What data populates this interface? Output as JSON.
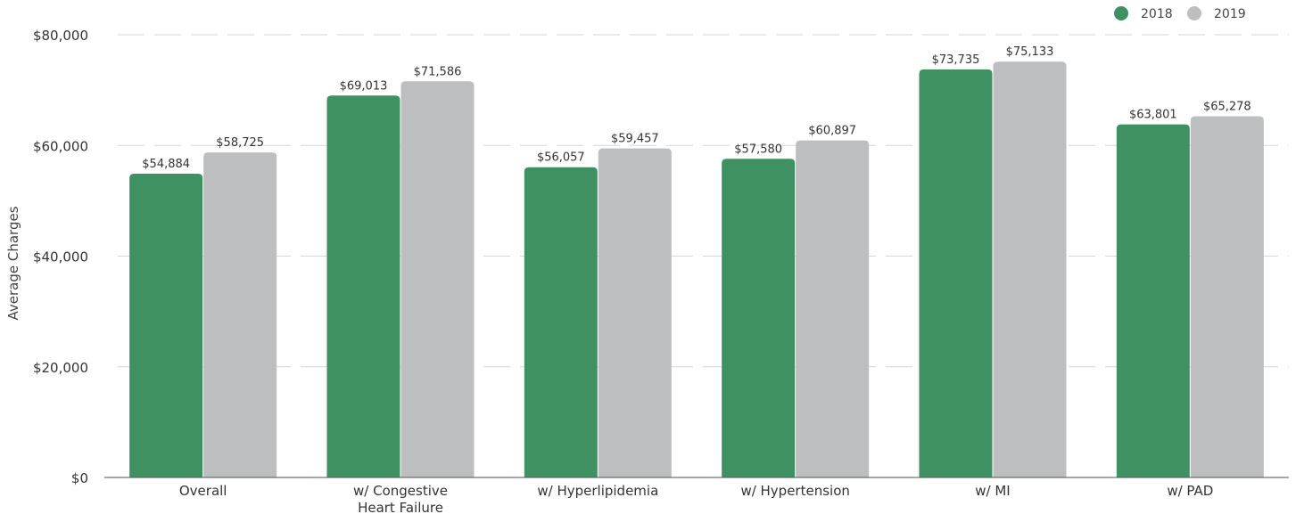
{
  "chart_data": {
    "type": "bar",
    "categories": [
      "Overall",
      "w/ Congestive Heart Failure",
      "w/ Hyperlipidemia",
      "w/ Hypertension",
      "w/ MI",
      "w/ PAD"
    ],
    "category_lines": [
      [
        "Overall"
      ],
      [
        "w/ Congestive",
        "Heart Failure"
      ],
      [
        "w/ Hyperlipidemia"
      ],
      [
        "w/ Hypertension"
      ],
      [
        "w/ MI"
      ],
      [
        "w/ PAD"
      ]
    ],
    "series": [
      {
        "name": "2018",
        "color": "#3f9163",
        "values": [
          54884,
          69013,
          56057,
          57580,
          73735,
          63801
        ],
        "labels": [
          "$54,884",
          "$69,013",
          "$56,057",
          "$57,580",
          "$73,735",
          "$63,801"
        ]
      },
      {
        "name": "2019",
        "color": "#bdbebf",
        "values": [
          58725,
          71586,
          59457,
          60897,
          75133,
          65278
        ],
        "labels": [
          "$58,725",
          "$71,586",
          "$59,457",
          "$60,897",
          "$75,133",
          "$65,278"
        ]
      }
    ],
    "ylabel": "Average Charges",
    "xlabel": "",
    "title": "",
    "ylim": [
      0,
      80000
    ],
    "yticks": [
      0,
      20000,
      40000,
      60000,
      80000
    ],
    "ytick_labels": [
      "$0",
      "$20,000",
      "$40,000",
      "$60,000",
      "$80,000"
    ],
    "grid": "horizontal-dashed",
    "legend_position": "top-right"
  }
}
